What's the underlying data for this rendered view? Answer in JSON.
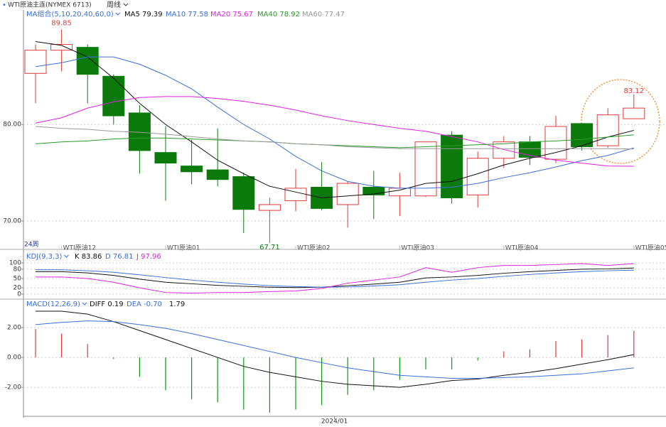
{
  "header": {
    "instrument": "WTI原油主连(NYMEX 6713)",
    "period": "周线"
  },
  "chart_data": [
    {
      "type": "candlestick",
      "legend_title": "MA组合(5,10,20,40,60,0)",
      "x_label": "24周",
      "categories": [
        null,
        "WTI原油12",
        null,
        null,
        null,
        "WTI原油01",
        null,
        null,
        null,
        null,
        "WTI原油02",
        null,
        null,
        null,
        "WTI原油03",
        null,
        null,
        null,
        "WTI原油04",
        null,
        null,
        null,
        null,
        "WTI原油05"
      ],
      "open": [
        85.3,
        87.7,
        88.0,
        85.0,
        81.2,
        77.1,
        75.7,
        75.3,
        74.6,
        71.1,
        72.1,
        73.5,
        71.7,
        73.5,
        72.6,
        72.6,
        78.9,
        72.7,
        76.5,
        78.2,
        76.4,
        80.1,
        77.8,
        80.6
      ],
      "high": [
        88.3,
        89.85,
        88.3,
        85.2,
        82.0,
        79.8,
        78.4,
        79.6,
        75.0,
        72.4,
        75.4,
        76.1,
        74.1,
        75.2,
        75.0,
        78.2,
        79.3,
        77.2,
        78.8,
        78.8,
        80.9,
        80.1,
        81.7,
        83.12
      ],
      "low": [
        82.2,
        85.5,
        82.2,
        80.0,
        74.9,
        72.1,
        73.8,
        73.6,
        68.75,
        67.71,
        71.0,
        71.1,
        69.3,
        70.2,
        70.5,
        72.5,
        71.8,
        71.4,
        75.5,
        75.8,
        76.0,
        77.3,
        77.6,
        80.6
      ],
      "close": [
        87.7,
        88.3,
        85.2,
        80.9,
        77.3,
        76.0,
        75.1,
        74.3,
        71.2,
        71.7,
        73.4,
        71.3,
        73.9,
        72.7,
        73.4,
        78.2,
        72.4,
        76.5,
        78.2,
        76.6,
        79.8,
        77.7,
        81.0,
        81.7
      ],
      "up_color": "#e03a3a",
      "down_color": "#0b7a0b",
      "ylim": [
        67.5,
        91.8
      ],
      "yticks": [
        {
          "value": 80,
          "label": "80.00"
        },
        {
          "value": 70,
          "label": "70.00"
        }
      ],
      "grid": true,
      "series": [
        {
          "name": "MA5",
          "color": "#111111",
          "legend_value": "79.39",
          "values": [
            88.6,
            88.2,
            87.0,
            84.8,
            82.2,
            80.0,
            78.2,
            76.3,
            74.9,
            73.6,
            73.0,
            72.4,
            72.6,
            72.8,
            73.2,
            73.9,
            74.1,
            74.9,
            75.8,
            76.5,
            77.1,
            77.8,
            78.7,
            79.39
          ]
        },
        {
          "name": "MA10",
          "color": "#3a6fd8",
          "legend_value": "77.58",
          "values": [
            86.0,
            86.4,
            87.0,
            87.0,
            86.25,
            85.1,
            83.7,
            81.8,
            80.0,
            78.5,
            76.7,
            75.2,
            74.1,
            73.6,
            73.4,
            73.4,
            73.5,
            73.9,
            74.5,
            75.0,
            75.6,
            76.25,
            76.8,
            77.58
          ]
        },
        {
          "name": "MA20",
          "color": "#e020e0",
          "legend_value": "75.67",
          "values": [
            80.15,
            80.7,
            81.7,
            82.35,
            82.8,
            82.9,
            82.9,
            82.7,
            82.4,
            82.0,
            81.5,
            80.9,
            80.4,
            80.0,
            79.6,
            79.3,
            78.75,
            78.2,
            77.4,
            76.8,
            76.3,
            76.0,
            75.7,
            75.67
          ]
        },
        {
          "name": "MA40",
          "color": "#2a9a2a",
          "legend_value": "78.92",
          "values": [
            78.0,
            78.2,
            78.3,
            78.5,
            78.6,
            78.6,
            78.5,
            78.4,
            78.3,
            78.2,
            78.0,
            77.9,
            77.8,
            77.7,
            77.6,
            77.7,
            77.8,
            77.9,
            78.0,
            78.2,
            78.3,
            78.45,
            78.7,
            78.92
          ]
        },
        {
          "name": "MA60",
          "color": "#999999",
          "legend_value": "77.47",
          "values": [
            79.8,
            79.6,
            79.5,
            79.3,
            79.2,
            79.0,
            78.75,
            78.5,
            78.3,
            78.2,
            78.0,
            77.9,
            77.7,
            77.6,
            77.5,
            77.5,
            77.5,
            77.5,
            77.5,
            77.5,
            77.5,
            77.5,
            77.5,
            77.47
          ]
        }
      ]
    },
    {
      "type": "line",
      "title": "KDJ(9,3,3)",
      "ylim": [
        -14,
        130
      ],
      "yticks": [
        100,
        80,
        50,
        20,
        0
      ],
      "grid": true,
      "series": [
        {
          "name": "K",
          "color": "#111111",
          "legend_value": "83.86",
          "values": [
            72,
            72,
            68,
            60,
            48,
            38,
            33,
            28,
            25,
            22,
            21,
            22,
            27,
            32,
            38,
            52,
            55,
            60,
            67,
            72,
            76,
            80,
            81,
            83.86
          ]
        },
        {
          "name": "D",
          "color": "#3a6fd8",
          "legend_value": "76.81",
          "values": [
            78,
            78,
            75,
            70,
            62,
            53,
            45,
            38,
            32,
            27,
            24,
            22,
            23,
            26,
            30,
            38,
            45,
            50,
            57,
            63,
            68,
            72,
            75,
            76.81
          ]
        },
        {
          "name": "J",
          "color": "#e020e0",
          "legend_value": "97.96",
          "values": [
            55,
            55,
            50,
            38,
            20,
            5,
            3,
            5,
            5,
            8,
            10,
            18,
            35,
            45,
            55,
            85,
            70,
            85,
            92,
            92,
            95,
            98,
            92,
            97.96
          ]
        }
      ]
    },
    {
      "type": "macd",
      "title": "MACD(12,26,9)",
      "x_label": "2024/01",
      "ylim": [
        -3.9,
        3.86
      ],
      "yticks": [
        {
          "value": 2,
          "label": "2.00"
        },
        {
          "value": 0,
          "label": "0.00"
        },
        {
          "value": -2,
          "label": "-2.00"
        }
      ],
      "grid": true,
      "series": [
        {
          "name": "DIFF",
          "color": "#111111",
          "legend_value": "0.19",
          "values": [
            3.1,
            3.1,
            2.9,
            2.4,
            1.8,
            1.2,
            0.6,
            0.0,
            -0.6,
            -1.0,
            -1.3,
            -1.6,
            -1.8,
            -1.9,
            -2.0,
            -1.8,
            -1.55,
            -1.45,
            -1.2,
            -1.0,
            -0.75,
            -0.45,
            -0.15,
            0.19
          ]
        },
        {
          "name": "DEA",
          "color": "#3a6fd8",
          "legend_value": "-0.70",
          "values": [
            2.2,
            2.35,
            2.45,
            2.4,
            2.2,
            1.95,
            1.6,
            1.2,
            0.8,
            0.4,
            0.0,
            -0.35,
            -0.7,
            -0.95,
            -1.2,
            -1.3,
            -1.4,
            -1.4,
            -1.35,
            -1.3,
            -1.2,
            -1.1,
            -0.9,
            -0.7
          ]
        }
      ],
      "histogram": {
        "legend_value": "1.79",
        "up_color": "#e03a3a",
        "down_color": "#0b9a0b",
        "values": [
          1.9,
          1.6,
          0.9,
          -0.1,
          -1.3,
          -2.2,
          -2.8,
          -3.0,
          -3.5,
          -3.7,
          -3.5,
          -3.2,
          -2.5,
          -2.2,
          -1.5,
          -0.8,
          -0.8,
          -0.2,
          0.4,
          0.55,
          1.1,
          1.2,
          1.5,
          1.79
        ]
      }
    }
  ]
}
